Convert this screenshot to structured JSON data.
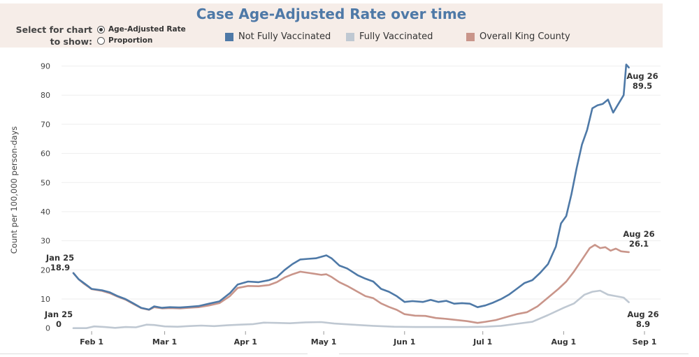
{
  "chart_data": {
    "type": "line",
    "title": "Case Age-Adjusted Rate over time",
    "ylabel": "Count per 100,000 person-days",
    "xlabel": "",
    "ylim": [
      -1.5,
      93
    ],
    "yticks": [
      0,
      10,
      20,
      30,
      40,
      50,
      60,
      70,
      80,
      90
    ],
    "x_start": "2021-01-25",
    "x_end": "2021-09-01",
    "xticks": [
      {
        "date": "2021-02-01",
        "label": "Feb 1"
      },
      {
        "date": "2021-03-01",
        "label": "Mar 1"
      },
      {
        "date": "2021-04-01",
        "label": "Apr 1"
      },
      {
        "date": "2021-05-01",
        "label": "May 1"
      },
      {
        "date": "2021-06-01",
        "label": "Jun 1"
      },
      {
        "date": "2021-07-01",
        "label": "Jul 1"
      },
      {
        "date": "2021-08-01",
        "label": "Aug 1"
      },
      {
        "date": "2021-09-01",
        "label": "Sep 1"
      }
    ],
    "grid": "horizontal",
    "series": [
      {
        "name": "Not Fully Vaccinated",
        "color": "#4e79a7",
        "points": [
          [
            "2021-01-25",
            18.9
          ],
          [
            "2021-01-27",
            16.8
          ],
          [
            "2021-01-29",
            15.5
          ],
          [
            "2021-02-01",
            13.5
          ],
          [
            "2021-02-05",
            13.0
          ],
          [
            "2021-02-08",
            12.3
          ],
          [
            "2021-02-11",
            11.0
          ],
          [
            "2021-02-14",
            10.0
          ],
          [
            "2021-02-17",
            8.5
          ],
          [
            "2021-02-20",
            7.0
          ],
          [
            "2021-02-23",
            6.4
          ],
          [
            "2021-02-25",
            7.5
          ],
          [
            "2021-02-28",
            7.0
          ],
          [
            "2021-03-03",
            7.2
          ],
          [
            "2021-03-07",
            7.1
          ],
          [
            "2021-03-10",
            7.3
          ],
          [
            "2021-03-14",
            7.6
          ],
          [
            "2021-03-18",
            8.4
          ],
          [
            "2021-03-22",
            9.2
          ],
          [
            "2021-03-26",
            12.0
          ],
          [
            "2021-03-29",
            15.0
          ],
          [
            "2021-04-02",
            16.0
          ],
          [
            "2021-04-06",
            15.8
          ],
          [
            "2021-04-10",
            16.5
          ],
          [
            "2021-04-13",
            17.5
          ],
          [
            "2021-04-16",
            20.0
          ],
          [
            "2021-04-19",
            22.0
          ],
          [
            "2021-04-22",
            23.6
          ],
          [
            "2021-04-25",
            23.8
          ],
          [
            "2021-04-28",
            24.0
          ],
          [
            "2021-04-30",
            24.5
          ],
          [
            "2021-05-02",
            25.0
          ],
          [
            "2021-05-04",
            24.0
          ],
          [
            "2021-05-07",
            21.5
          ],
          [
            "2021-05-10",
            20.5
          ],
          [
            "2021-05-14",
            18.2
          ],
          [
            "2021-05-17",
            17.0
          ],
          [
            "2021-05-20",
            16.0
          ],
          [
            "2021-05-23",
            13.5
          ],
          [
            "2021-05-26",
            12.5
          ],
          [
            "2021-05-29",
            11.0
          ],
          [
            "2021-06-01",
            9.0
          ],
          [
            "2021-06-04",
            9.3
          ],
          [
            "2021-06-08",
            9.0
          ],
          [
            "2021-06-11",
            9.7
          ],
          [
            "2021-06-14",
            9.0
          ],
          [
            "2021-06-17",
            9.4
          ],
          [
            "2021-06-20",
            8.4
          ],
          [
            "2021-06-23",
            8.6
          ],
          [
            "2021-06-26",
            8.4
          ],
          [
            "2021-06-29",
            7.2
          ],
          [
            "2021-07-02",
            7.8
          ],
          [
            "2021-07-05",
            8.8
          ],
          [
            "2021-07-08",
            10.0
          ],
          [
            "2021-07-11",
            11.5
          ],
          [
            "2021-07-14",
            13.5
          ],
          [
            "2021-07-17",
            15.5
          ],
          [
            "2021-07-20",
            16.5
          ],
          [
            "2021-07-23",
            19.0
          ],
          [
            "2021-07-26",
            22.0
          ],
          [
            "2021-07-29",
            28.0
          ],
          [
            "2021-07-31",
            36.0
          ],
          [
            "2021-08-02",
            38.5
          ],
          [
            "2021-08-04",
            46.0
          ],
          [
            "2021-08-06",
            55.0
          ],
          [
            "2021-08-08",
            63.0
          ],
          [
            "2021-08-10",
            68.0
          ],
          [
            "2021-08-12",
            75.5
          ],
          [
            "2021-08-14",
            76.5
          ],
          [
            "2021-08-16",
            77.0
          ],
          [
            "2021-08-18",
            78.5
          ],
          [
            "2021-08-20",
            74.0
          ],
          [
            "2021-08-22",
            77.0
          ],
          [
            "2021-08-24",
            80.0
          ],
          [
            "2021-08-25",
            90.5
          ],
          [
            "2021-08-26",
            89.5
          ]
        ]
      },
      {
        "name": "Fully Vaccinated",
        "color": "#bfc8d2",
        "points": [
          [
            "2021-01-25",
            0
          ],
          [
            "2021-01-30",
            0
          ],
          [
            "2021-02-02",
            0.6
          ],
          [
            "2021-02-06",
            0.4
          ],
          [
            "2021-02-10",
            0.1
          ],
          [
            "2021-02-14",
            0.4
          ],
          [
            "2021-02-18",
            0.3
          ],
          [
            "2021-02-22",
            1.2
          ],
          [
            "2021-02-25",
            1.1
          ],
          [
            "2021-03-01",
            0.6
          ],
          [
            "2021-03-06",
            0.5
          ],
          [
            "2021-03-10",
            0.7
          ],
          [
            "2021-03-15",
            0.9
          ],
          [
            "2021-03-20",
            0.7
          ],
          [
            "2021-03-25",
            1.0
          ],
          [
            "2021-03-30",
            1.2
          ],
          [
            "2021-04-04",
            1.4
          ],
          [
            "2021-04-08",
            1.9
          ],
          [
            "2021-04-13",
            1.8
          ],
          [
            "2021-04-18",
            1.7
          ],
          [
            "2021-04-24",
            2.0
          ],
          [
            "2021-04-30",
            2.1
          ],
          [
            "2021-05-05",
            1.6
          ],
          [
            "2021-05-12",
            1.2
          ],
          [
            "2021-05-20",
            0.8
          ],
          [
            "2021-05-28",
            0.5
          ],
          [
            "2021-06-05",
            0.4
          ],
          [
            "2021-06-15",
            0.4
          ],
          [
            "2021-06-25",
            0.4
          ],
          [
            "2021-07-02",
            0.5
          ],
          [
            "2021-07-08",
            0.8
          ],
          [
            "2021-07-14",
            1.5
          ],
          [
            "2021-07-20",
            2.2
          ],
          [
            "2021-07-26",
            4.5
          ],
          [
            "2021-08-01",
            7.0
          ],
          [
            "2021-08-05",
            8.5
          ],
          [
            "2021-08-09",
            11.5
          ],
          [
            "2021-08-12",
            12.5
          ],
          [
            "2021-08-15",
            12.9
          ],
          [
            "2021-08-18",
            11.5
          ],
          [
            "2021-08-21",
            11.0
          ],
          [
            "2021-08-24",
            10.5
          ],
          [
            "2021-08-26",
            8.9
          ]
        ]
      },
      {
        "name": "Overall King County",
        "color": "#c9958a",
        "points": [
          [
            "2021-01-25",
            18.9
          ],
          [
            "2021-01-27",
            16.8
          ],
          [
            "2021-01-29",
            15.3
          ],
          [
            "2021-02-01",
            13.4
          ],
          [
            "2021-02-05",
            12.8
          ],
          [
            "2021-02-08",
            12.0
          ],
          [
            "2021-02-11",
            10.8
          ],
          [
            "2021-02-14",
            9.8
          ],
          [
            "2021-02-17",
            8.3
          ],
          [
            "2021-02-20",
            6.9
          ],
          [
            "2021-02-23",
            6.3
          ],
          [
            "2021-02-25",
            7.2
          ],
          [
            "2021-02-28",
            6.8
          ],
          [
            "2021-03-03",
            6.9
          ],
          [
            "2021-03-07",
            6.8
          ],
          [
            "2021-03-10",
            7.0
          ],
          [
            "2021-03-14",
            7.2
          ],
          [
            "2021-03-18",
            7.8
          ],
          [
            "2021-03-22",
            8.6
          ],
          [
            "2021-03-26",
            11.0
          ],
          [
            "2021-03-29",
            13.8
          ],
          [
            "2021-04-02",
            14.5
          ],
          [
            "2021-04-06",
            14.4
          ],
          [
            "2021-04-10",
            14.8
          ],
          [
            "2021-04-13",
            15.8
          ],
          [
            "2021-04-16",
            17.4
          ],
          [
            "2021-04-19",
            18.5
          ],
          [
            "2021-04-22",
            19.4
          ],
          [
            "2021-04-25",
            19.0
          ],
          [
            "2021-04-28",
            18.6
          ],
          [
            "2021-04-30",
            18.3
          ],
          [
            "2021-05-02",
            18.5
          ],
          [
            "2021-05-04",
            17.6
          ],
          [
            "2021-05-07",
            15.8
          ],
          [
            "2021-05-10",
            14.5
          ],
          [
            "2021-05-14",
            12.5
          ],
          [
            "2021-05-17",
            11.0
          ],
          [
            "2021-05-20",
            10.3
          ],
          [
            "2021-05-23",
            8.5
          ],
          [
            "2021-05-26",
            7.3
          ],
          [
            "2021-05-29",
            6.3
          ],
          [
            "2021-06-01",
            4.8
          ],
          [
            "2021-06-05",
            4.3
          ],
          [
            "2021-06-09",
            4.2
          ],
          [
            "2021-06-13",
            3.5
          ],
          [
            "2021-06-17",
            3.2
          ],
          [
            "2021-06-21",
            2.8
          ],
          [
            "2021-06-25",
            2.4
          ],
          [
            "2021-06-29",
            1.8
          ],
          [
            "2021-07-02",
            2.2
          ],
          [
            "2021-07-06",
            2.8
          ],
          [
            "2021-07-10",
            3.8
          ],
          [
            "2021-07-14",
            4.8
          ],
          [
            "2021-07-18",
            5.5
          ],
          [
            "2021-07-22",
            7.5
          ],
          [
            "2021-07-26",
            10.5
          ],
          [
            "2021-07-30",
            13.5
          ],
          [
            "2021-08-02",
            16.0
          ],
          [
            "2021-08-05",
            19.5
          ],
          [
            "2021-08-08",
            23.5
          ],
          [
            "2021-08-11",
            27.5
          ],
          [
            "2021-08-13",
            28.6
          ],
          [
            "2021-08-15",
            27.5
          ],
          [
            "2021-08-17",
            27.8
          ],
          [
            "2021-08-19",
            26.6
          ],
          [
            "2021-08-21",
            27.3
          ],
          [
            "2021-08-23",
            26.4
          ],
          [
            "2021-08-26",
            26.1
          ]
        ]
      }
    ],
    "annotations": [
      {
        "series": "Not Fully Vaccinated",
        "position": "start",
        "date_label": "Jan 25",
        "value_label": "18.9"
      },
      {
        "series": "Fully Vaccinated",
        "position": "start",
        "date_label": "Jan 25",
        "value_label": "0"
      },
      {
        "series": "Not Fully Vaccinated",
        "position": "end",
        "date_label": "Aug 26",
        "value_label": "89.5"
      },
      {
        "series": "Overall King County",
        "position": "end",
        "date_label": "Aug 26",
        "value_label": "26.1"
      },
      {
        "series": "Fully Vaccinated",
        "position": "end",
        "date_label": "Aug 26",
        "value_label": "8.9"
      }
    ],
    "legend_placement": "top"
  },
  "header": {
    "selector_label": "Select for chart to show:",
    "options": [
      {
        "label": "Age-Adjusted Rate",
        "selected": true
      },
      {
        "label": "Proportion",
        "selected": false
      }
    ]
  },
  "legend": [
    {
      "label": "Not Fully Vaccinated",
      "color": "#4e79a7"
    },
    {
      "label": "Fully Vaccinated",
      "color": "#bfc8d2"
    },
    {
      "label": "Overall King County",
      "color": "#c9958a"
    }
  ]
}
